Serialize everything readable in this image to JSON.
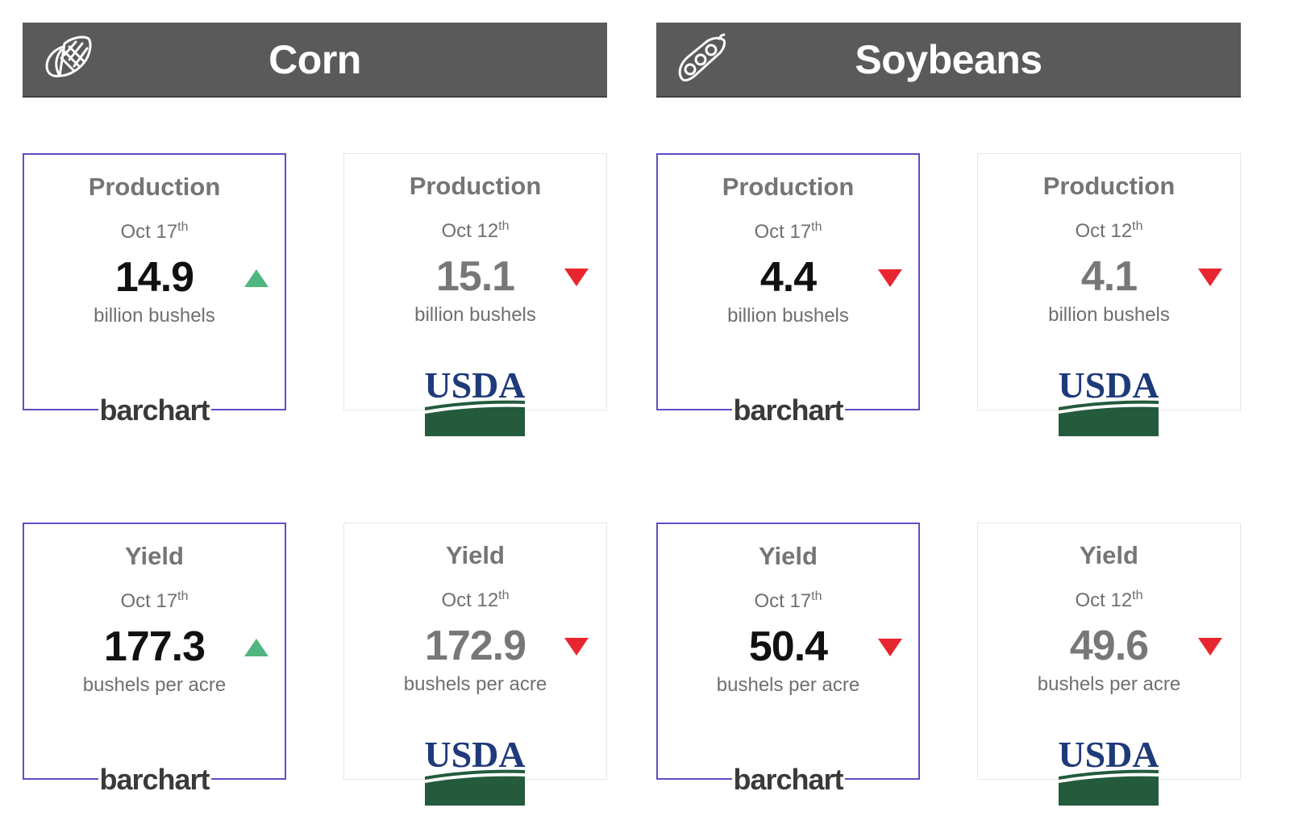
{
  "crops": [
    {
      "name": "Corn",
      "icon": "corn-icon",
      "cards": [
        {
          "metric": "Production",
          "month": "Oct 17",
          "suffix": "th",
          "value": "14.9",
          "unit": "billion bushels",
          "trend": "up",
          "source": "barchart"
        },
        {
          "metric": "Production",
          "month": "Oct 12",
          "suffix": "th",
          "value": "15.1",
          "unit": "billion bushels",
          "trend": "down",
          "source": "USDA"
        },
        {
          "metric": "Yield",
          "month": "Oct 17",
          "suffix": "th",
          "value": "177.3",
          "unit": "bushels per acre",
          "trend": "up",
          "source": "barchart"
        },
        {
          "metric": "Yield",
          "month": "Oct 12",
          "suffix": "th",
          "value": "172.9",
          "unit": "bushels per acre",
          "trend": "down",
          "source": "USDA"
        }
      ]
    },
    {
      "name": "Soybeans",
      "icon": "soybean-pod-icon",
      "cards": [
        {
          "metric": "Production",
          "month": "Oct 17",
          "suffix": "th",
          "value": "4.4",
          "unit": "billion bushels",
          "trend": "down",
          "source": "barchart"
        },
        {
          "metric": "Production",
          "month": "Oct 12",
          "suffix": "th",
          "value": "4.1",
          "unit": "billion bushels",
          "trend": "down",
          "source": "USDA"
        },
        {
          "metric": "Yield",
          "month": "Oct 17",
          "suffix": "th",
          "value": "50.4",
          "unit": "bushels per acre",
          "trend": "down",
          "source": "barchart"
        },
        {
          "metric": "Yield",
          "month": "Oct 12",
          "suffix": "th",
          "value": "49.6",
          "unit": "bushels per acre",
          "trend": "down",
          "source": "USDA"
        }
      ]
    }
  ],
  "colors": {
    "header_bg": "#5a5a5a",
    "barchart_border": "#5b4fc4",
    "up_arrow": "#4fb67f",
    "down_arrow": "#e8262f",
    "usda_blue": "#1f3a7a",
    "usda_green": "#235b3c"
  }
}
